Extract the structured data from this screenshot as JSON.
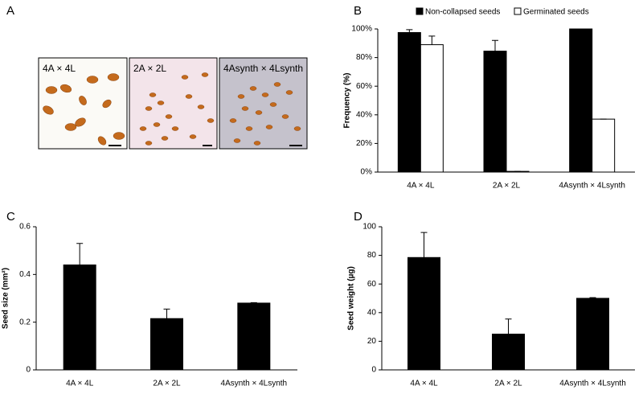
{
  "panel_a": {
    "label": "A",
    "images": [
      "4A × 4L",
      "2A × 2L",
      "4Asynth × 4Lsynth"
    ]
  },
  "chart_data": [
    {
      "type": "bar",
      "panel": "B",
      "ylabel": "Frequency (%)",
      "categories": [
        "4A × 4L",
        "2A × 2L",
        "4Asynth × 4Lsynth"
      ],
      "series": [
        {
          "name": "Non-collapsed seeds",
          "color": "#000000",
          "values": [
            97.5,
            84.5,
            100
          ],
          "errors": [
            2,
            7.5,
            0
          ]
        },
        {
          "name": "Germinated seeds",
          "color": "#ffffff",
          "values": [
            89,
            0.5,
            37
          ],
          "errors": [
            6,
            0,
            0
          ]
        }
      ],
      "ylim": [
        0,
        100
      ],
      "yticks": [
        {
          "value": 0,
          "label": "0%"
        },
        {
          "value": 20,
          "label": "20%"
        },
        {
          "value": 40,
          "label": "40%"
        },
        {
          "value": 60,
          "label": "60%"
        },
        {
          "value": 80,
          "label": "80%"
        },
        {
          "value": 100,
          "label": "100%"
        }
      ],
      "legend": "top"
    },
    {
      "type": "bar",
      "panel": "C",
      "ylabel": "Seed size (mm²)",
      "categories": [
        "4A × 4L",
        "2A × 2L",
        "4Asynth × 4Lsynth"
      ],
      "series": [
        {
          "color": "#000000",
          "values": [
            0.44,
            0.215,
            0.28
          ],
          "errors": [
            0.09,
            0.04,
            0.002
          ]
        }
      ],
      "ylim": [
        0,
        0.6
      ],
      "yticks": [
        0,
        0.2,
        0.4,
        0.6
      ]
    },
    {
      "type": "bar",
      "panel": "D",
      "ylabel": "Seed weight (µg)",
      "categories": [
        "4A × 4L",
        "2A × 2L",
        "4Asynth × 4Lsynth"
      ],
      "series": [
        {
          "color": "#000000",
          "values": [
            78.5,
            25,
            50
          ],
          "errors": [
            17.5,
            10.5,
            0.5
          ]
        }
      ],
      "ylim": [
        0,
        100
      ],
      "yticks": [
        0,
        20,
        40,
        60,
        80,
        100
      ]
    }
  ]
}
